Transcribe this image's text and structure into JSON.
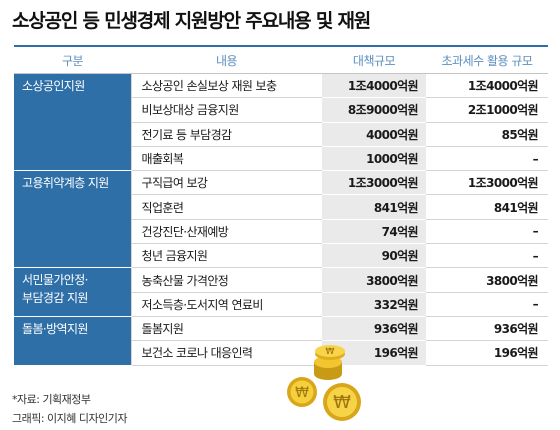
{
  "title": "소상공인 등 민생경제 지원방안 주요내용 및 재원",
  "headers": [
    "구분",
    "내용",
    "대책규모",
    "초과세수 활용 규모"
  ],
  "groups": [
    {
      "category": "소상공인지원",
      "rows": [
        {
          "item": "소상공인 손실보상 재원 보충",
          "budget": "1조4000억원",
          "tax": "1조4000억원"
        },
        {
          "item": "비보상대상 금융지원",
          "budget": "8조9000억원",
          "tax": "2조1000억원"
        },
        {
          "item": "전기료 등 부담경감",
          "budget": "4000억원",
          "tax": "85억원"
        },
        {
          "item": "매출회복",
          "budget": "1000억원",
          "tax": "–"
        }
      ]
    },
    {
      "category": "고용취약계층 지원",
      "rows": [
        {
          "item": "구직급여 보강",
          "budget": "1조3000억원",
          "tax": "1조3000억원"
        },
        {
          "item": "직업훈련",
          "budget": "841억원",
          "tax": "841억원"
        },
        {
          "item": "건강진단·산재예방",
          "budget": "74억원",
          "tax": "–"
        },
        {
          "item": "청년 금융지원",
          "budget": "90억원",
          "tax": "–"
        }
      ]
    },
    {
      "category": "서민물가안정·\n부담경감 지원",
      "rows": [
        {
          "item": "농축산물 가격안정",
          "budget": "3800억원",
          "tax": "3800억원"
        },
        {
          "item": "저소득층·도서지역 연료비",
          "budget": "332억원",
          "tax": "–"
        }
      ]
    },
    {
      "category": "돌봄·방역지원",
      "rows": [
        {
          "item": "돌봄지원",
          "budget": "936억원",
          "tax": "936억원"
        },
        {
          "item": "보건소 코로나 대응인력",
          "budget": "196억원",
          "tax": "196억원"
        }
      ]
    }
  ],
  "footer": {
    "source": "*자료: 기획재정부",
    "credit": "그래픽: 이지혜 디자인기자"
  },
  "colors": {
    "header_blue": "#2f6fa8",
    "header_text": "#5b8fc0",
    "budget_bg": "#eaeaea",
    "coin": "#e8b820"
  },
  "decorations": {
    "coin_symbol": "₩",
    "icon": "won-coins-icon"
  }
}
